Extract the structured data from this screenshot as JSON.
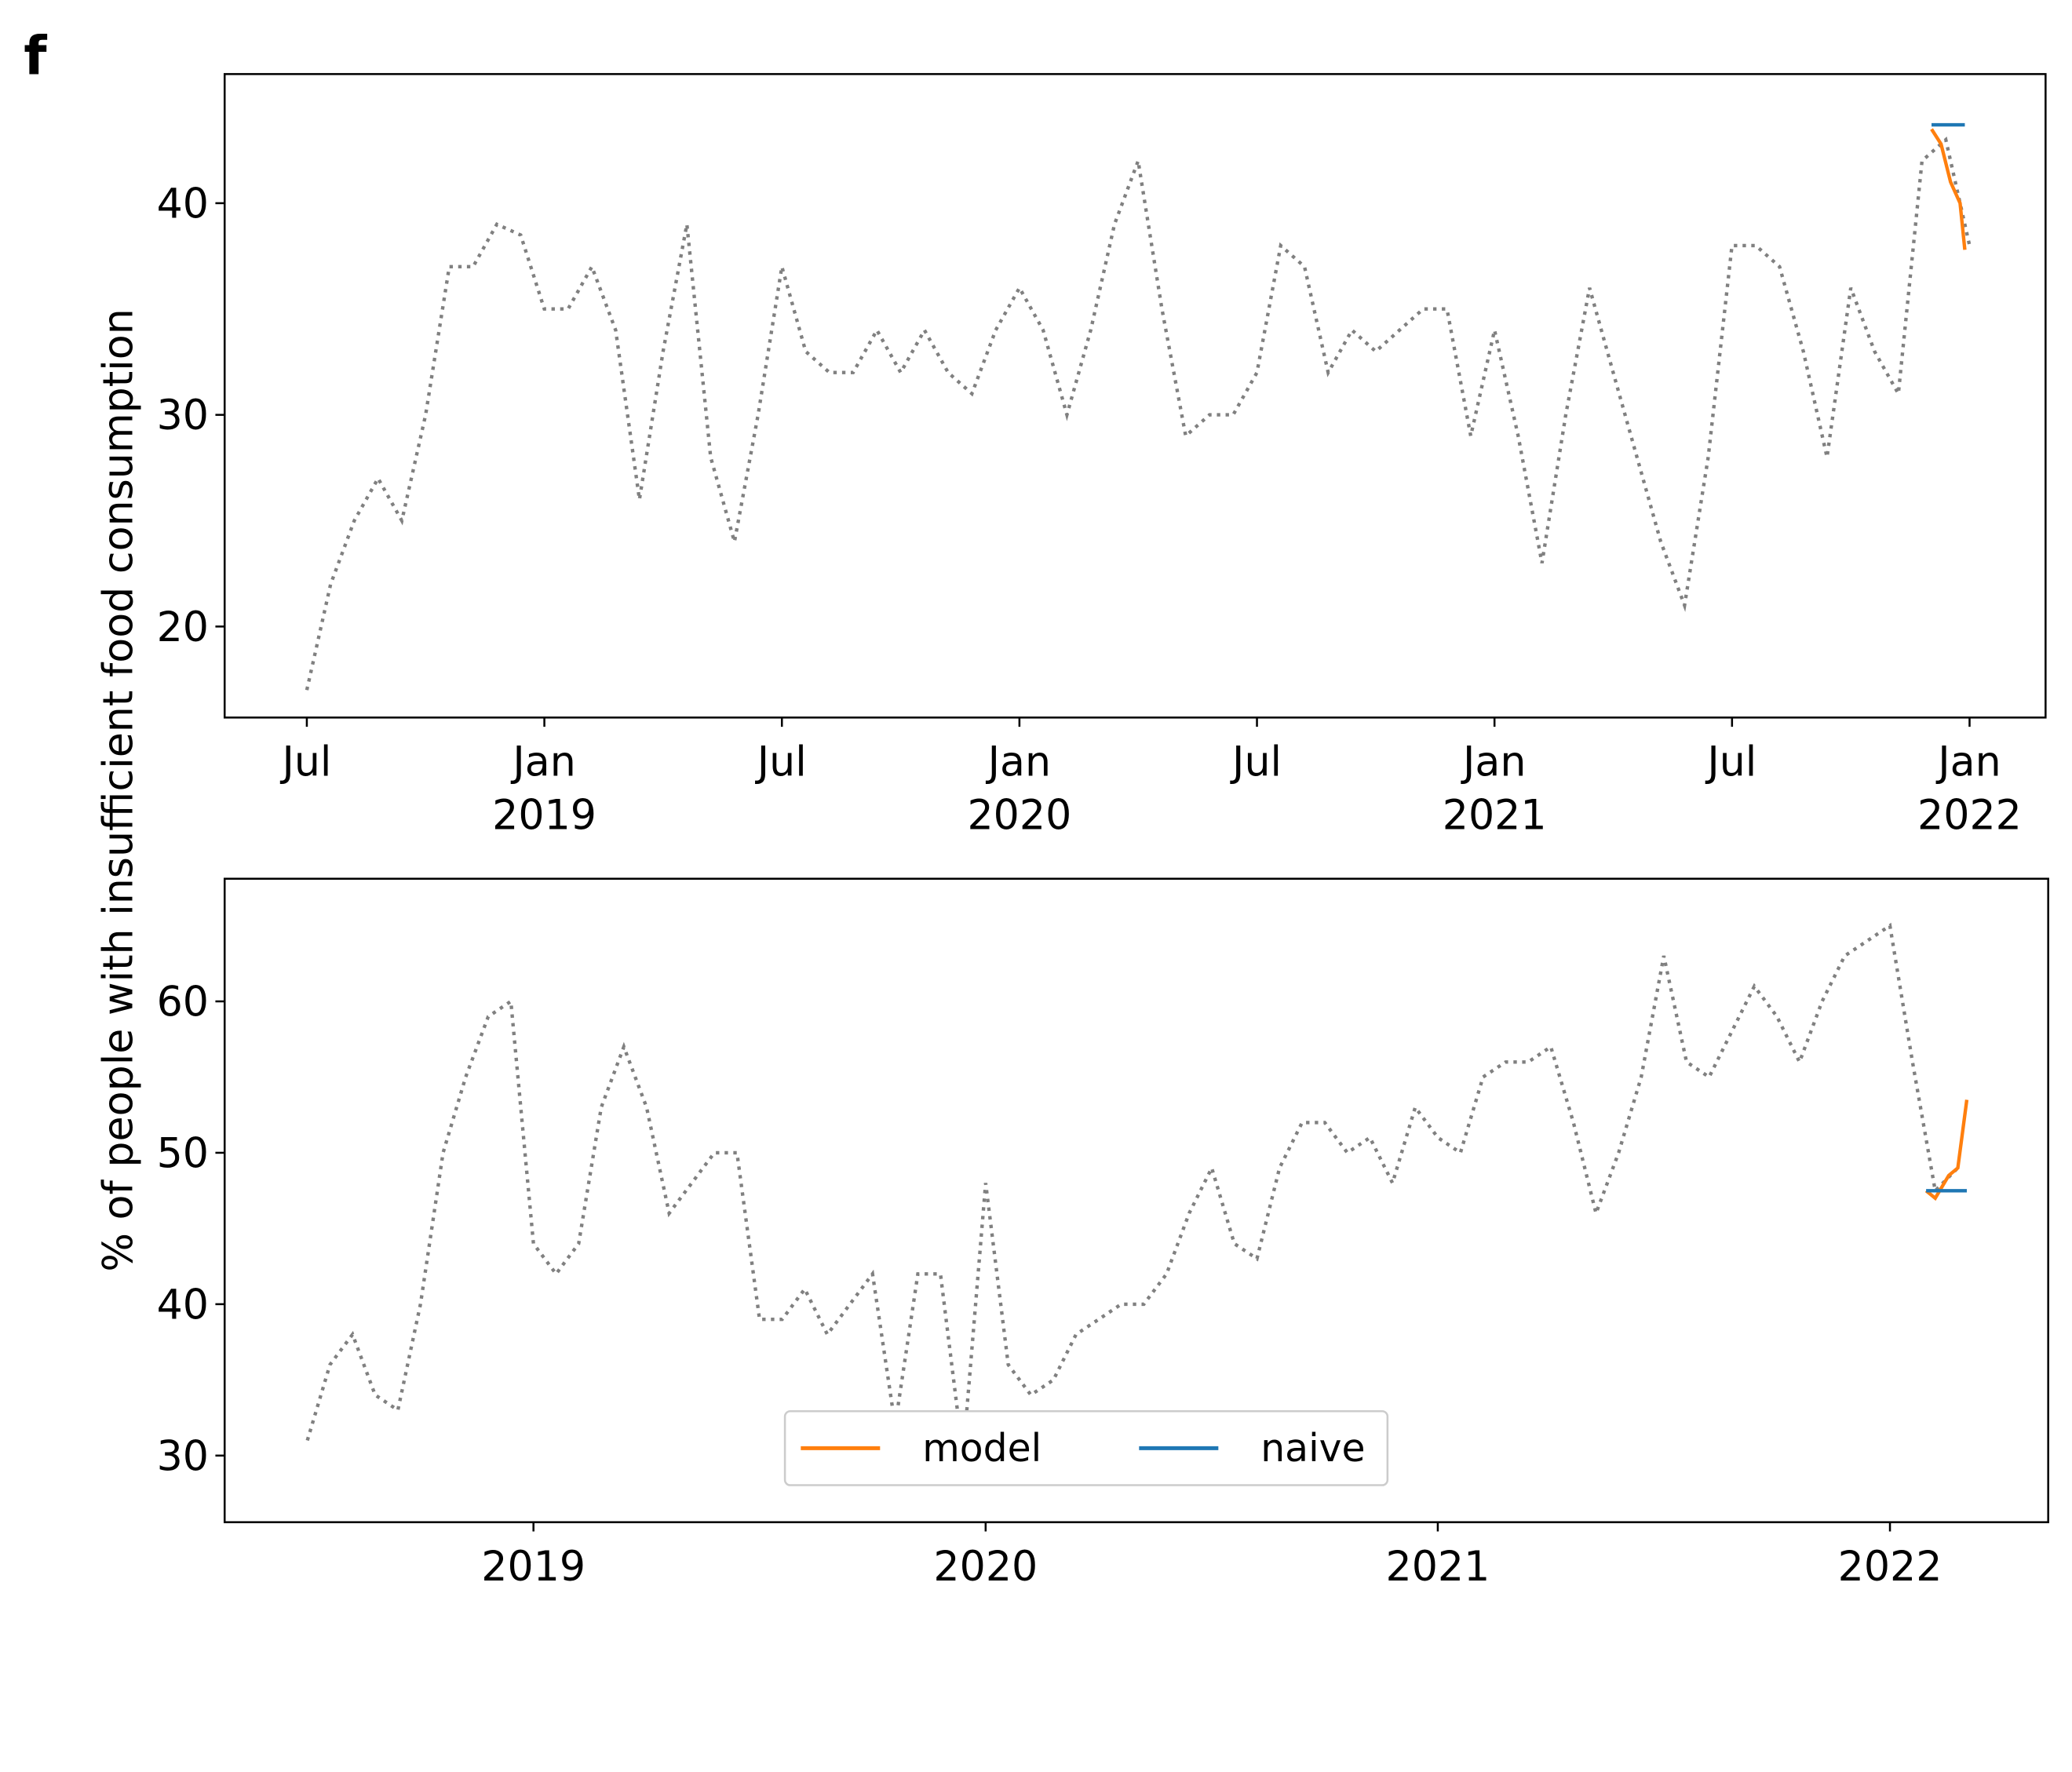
{
  "figure": {
    "panel_label": "f",
    "ylabel": "% of people with insufficient food consumption"
  },
  "chart_data": [
    {
      "type": "line",
      "xlim": [
        2018.327,
        2022.16
      ],
      "ylim": [
        15.7,
        46.1
      ],
      "yticks": [
        20,
        30,
        40
      ],
      "xticks": [
        {
          "value": 2018.5,
          "label": "Jul"
        },
        {
          "value": 2019.0,
          "label": "Jan\n2019"
        },
        {
          "value": 2019.5,
          "label": "Jul"
        },
        {
          "value": 2020.0,
          "label": "Jan\n2020"
        },
        {
          "value": 2020.5,
          "label": "Jul"
        },
        {
          "value": 2021.0,
          "label": "Jan\n2021"
        },
        {
          "value": 2021.5,
          "label": "Jul"
        },
        {
          "value": 2022.0,
          "label": "Jan\n2022"
        }
      ],
      "series": [
        {
          "color": "#808080",
          "style": "dotted",
          "x": [
            2018.5,
            2018.55,
            2018.6,
            2018.65,
            2018.7,
            2018.75,
            2018.8,
            2018.85,
            2018.9,
            2018.95,
            2019.0,
            2019.05,
            2019.1,
            2019.15,
            2019.2,
            2019.25,
            2019.3,
            2019.35,
            2019.4,
            2019.45,
            2019.5,
            2019.55,
            2019.6,
            2019.65,
            2019.7,
            2019.75,
            2019.8,
            2019.85,
            2019.9,
            2019.95,
            2020.0,
            2020.05,
            2020.1,
            2020.15,
            2020.2,
            2020.25,
            2020.3,
            2020.35,
            2020.4,
            2020.45,
            2020.5,
            2020.55,
            2020.6,
            2020.65,
            2020.7,
            2020.75,
            2020.8,
            2020.85,
            2020.9,
            2020.95,
            2021.0,
            2021.05,
            2021.1,
            2021.15,
            2021.2,
            2021.25,
            2021.3,
            2021.35,
            2021.4,
            2021.45,
            2021.5,
            2021.55,
            2021.6,
            2021.65,
            2021.7,
            2021.75,
            2021.8,
            2021.85,
            2021.9,
            2021.95,
            2022.0
          ],
          "values": [
            17,
            22,
            25,
            27,
            25,
            30,
            37,
            37,
            39,
            38.5,
            35,
            35,
            37,
            34,
            26,
            33,
            39,
            28,
            24,
            30,
            37,
            33,
            32,
            32,
            34,
            32,
            34,
            32,
            31,
            34,
            36,
            34,
            30,
            34,
            39,
            42,
            35,
            29,
            30,
            30,
            32,
            38,
            37,
            32,
            34,
            33,
            34,
            35,
            35,
            29,
            34,
            29,
            23,
            30,
            36,
            32,
            28,
            24,
            21,
            28,
            38,
            38,
            37,
            33,
            28,
            36,
            33,
            31,
            42,
            43,
            38
          ]
        },
        {
          "name": "model",
          "color": "#ff7f0e",
          "x": [
            2021.92,
            2021.94,
            2021.96,
            2021.98,
            2021.99
          ],
          "values": [
            43.5,
            42.8,
            41,
            40,
            37.8
          ]
        },
        {
          "name": "naive",
          "color": "#1f77b4",
          "x": [
            2021.92,
            2021.99
          ],
          "values": [
            43.7,
            43.7
          ]
        }
      ]
    },
    {
      "type": "line",
      "xlim": [
        2018.317,
        2022.35
      ],
      "ylim": [
        25.6,
        68.1
      ],
      "yticks": [
        30,
        40,
        50,
        60
      ],
      "xticks": [
        2019,
        2020,
        2021,
        2022
      ],
      "series": [
        {
          "color": "#808080",
          "style": "dotted",
          "x": [
            2018.5,
            2018.55,
            2018.6,
            2018.65,
            2018.7,
            2018.75,
            2018.8,
            2018.85,
            2018.9,
            2018.95,
            2019.0,
            2019.05,
            2019.1,
            2019.15,
            2019.2,
            2019.25,
            2019.3,
            2019.35,
            2019.4,
            2019.45,
            2019.5,
            2019.55,
            2019.6,
            2019.65,
            2019.7,
            2019.75,
            2019.8,
            2019.85,
            2019.9,
            2019.95,
            2020.0,
            2020.05,
            2020.1,
            2020.15,
            2020.2,
            2020.25,
            2020.3,
            2020.35,
            2020.4,
            2020.45,
            2020.5,
            2020.55,
            2020.6,
            2020.65,
            2020.7,
            2020.75,
            2020.8,
            2020.85,
            2020.9,
            2020.95,
            2021.0,
            2021.05,
            2021.1,
            2021.15,
            2021.2,
            2021.25,
            2021.3,
            2021.35,
            2021.4,
            2021.45,
            2021.5,
            2021.55,
            2021.6,
            2021.65,
            2021.7,
            2021.75,
            2021.8,
            2021.85,
            2021.9,
            2021.95,
            2022.0,
            2022.05,
            2022.1,
            2022.15
          ],
          "values": [
            31,
            36,
            38,
            34,
            33,
            40,
            50,
            55,
            59,
            60,
            44,
            42,
            44,
            53,
            57,
            53,
            46,
            48,
            50,
            50,
            39,
            39,
            41,
            38,
            40,
            42,
            32,
            42,
            42,
            30,
            48,
            36,
            34,
            35,
            38,
            39,
            40,
            40,
            42,
            46,
            49,
            44,
            43,
            49,
            52,
            52,
            50,
            51,
            48,
            53,
            51,
            50,
            55,
            56,
            56,
            57,
            52,
            46,
            50,
            55,
            63,
            56,
            55,
            58,
            61,
            59,
            56,
            60,
            63,
            64,
            65,
            56,
            47.5,
            49
          ]
        },
        {
          "name": "model",
          "color": "#ff7f0e",
          "x": [
            2022.08,
            2022.1,
            2022.13,
            2022.15,
            2022.17
          ],
          "values": [
            47.5,
            47,
            48.5,
            49,
            53.5
          ]
        },
        {
          "name": "naive",
          "color": "#1f77b4",
          "x": [
            2022.08,
            2022.17
          ],
          "values": [
            47.5,
            47.5
          ]
        }
      ]
    }
  ]
}
